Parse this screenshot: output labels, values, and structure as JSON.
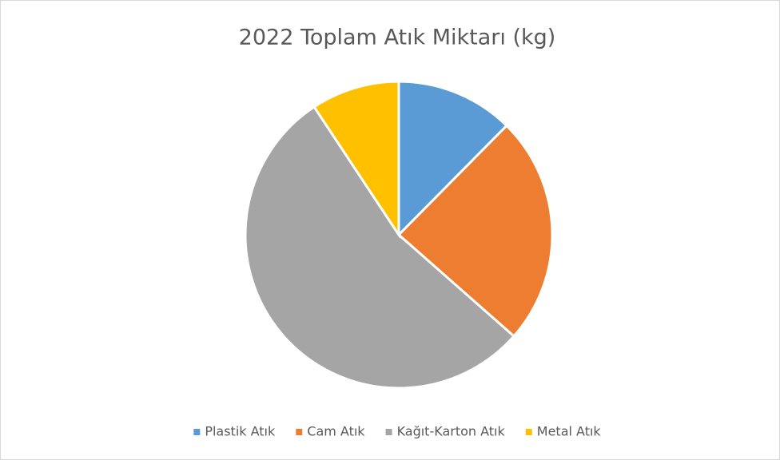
{
  "chart_data": {
    "type": "pie",
    "title": "2022 Toplam Atık Miktarı (kg)",
    "categories": [
      "Plastik Atık",
      "Cam Atık",
      "Kağıt-Karton Atık",
      "Metal Atık"
    ],
    "values": [
      12.4,
      24.1,
      54.2,
      9.3
    ],
    "colors": [
      "#5b9bd5",
      "#ed7d31",
      "#a5a5a5",
      "#ffc000"
    ],
    "legend": "bottom"
  }
}
